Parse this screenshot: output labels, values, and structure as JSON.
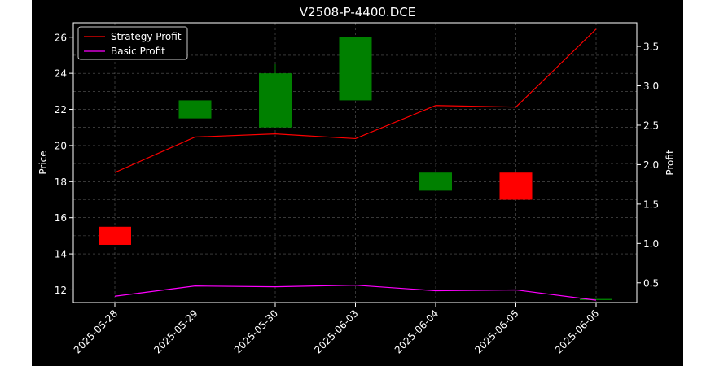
{
  "chart_data": {
    "type": "candlestick",
    "title": "V2508-P-4400.DCE",
    "ylabel_left": "Price",
    "ylabel_right": "Profit",
    "xlabel": "",
    "categories": [
      "2025-05-28",
      "2025-05-29",
      "2025-05-30",
      "2025-06-03",
      "2025-06-04",
      "2025-06-05",
      "2025-06-06"
    ],
    "ylim_left": [
      11.3,
      26.8
    ],
    "ylim_right": [
      0.25,
      3.8
    ],
    "left_ticks": [
      12,
      14,
      16,
      18,
      20,
      22,
      24,
      26
    ],
    "right_ticks": [
      "0.5",
      "1.0",
      "1.5",
      "2.0",
      "2.5",
      "3.0",
      "3.5"
    ],
    "grid": true,
    "legend_position": "top-left",
    "candles": [
      {
        "date": "2025-05-28",
        "open": 15.5,
        "high": 15.5,
        "low": 14.5,
        "close": 14.5
      },
      {
        "date": "2025-05-29",
        "open": 21.5,
        "high": 22.5,
        "low": 17.5,
        "close": 22.5
      },
      {
        "date": "2025-05-30",
        "open": 21.0,
        "high": 24.5,
        "low": 21.0,
        "close": 24.0
      },
      {
        "date": "2025-06-03",
        "open": 22.5,
        "high": 26.0,
        "low": 22.5,
        "close": 26.0
      },
      {
        "date": "2025-06-04",
        "open": 17.5,
        "high": 18.5,
        "low": 17.5,
        "close": 18.5
      },
      {
        "date": "2025-06-05",
        "open": 18.5,
        "high": 18.5,
        "low": 17.0,
        "close": 17.0
      },
      {
        "date": "2025-06-06",
        "open": 11.5,
        "high": 11.5,
        "low": 11.5,
        "close": 11.5
      }
    ],
    "series": [
      {
        "name": "Strategy Profit",
        "color": "#ff0000",
        "axis": "right",
        "values": [
          1.9,
          2.35,
          2.39,
          2.33,
          2.75,
          2.73,
          3.72
        ]
      },
      {
        "name": "Basic Profit",
        "color": "#ff00ff",
        "axis": "right",
        "values": [
          0.33,
          0.46,
          0.45,
          0.47,
          0.4,
          0.41,
          0.28
        ]
      }
    ],
    "colors": {
      "background": "#000000",
      "up": "#008000",
      "down": "#ff0000",
      "axes": "#ffffff",
      "grid": "#808080"
    }
  }
}
